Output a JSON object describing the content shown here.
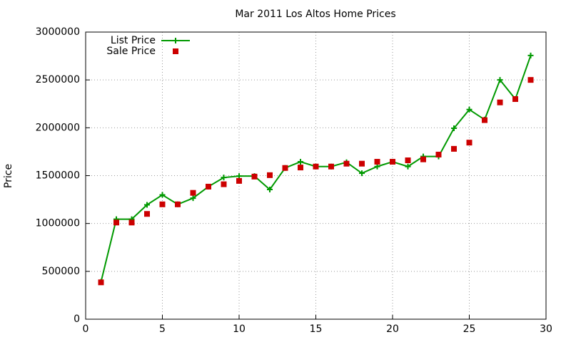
{
  "chart_data": {
    "type": "line",
    "title": "Mar 2011 Los Altos Home Prices",
    "y_label": "Price",
    "x": [
      1,
      2,
      3,
      4,
      5,
      6,
      7,
      8,
      9,
      10,
      11,
      12,
      13,
      14,
      15,
      16,
      17,
      18,
      19,
      20,
      21,
      22,
      23,
      24,
      25,
      26,
      27,
      28,
      29
    ],
    "series": [
      {
        "name": "List Price",
        "color": "#009900",
        "line": true,
        "marker": "plus",
        "values": [
          390000,
          1045000,
          1045000,
          1195000,
          1299000,
          1200000,
          1265000,
          1385000,
          1480000,
          1495000,
          1495000,
          1355000,
          1580000,
          1645000,
          1595000,
          1595000,
          1640000,
          1525000,
          1595000,
          1645000,
          1595000,
          1700000,
          1700000,
          1995000,
          2190000,
          2085000,
          2500000,
          2300000,
          2755000
        ]
      },
      {
        "name": "Sale Price",
        "color": "#cc0000",
        "line": false,
        "marker": "square",
        "values": [
          385000,
          1010000,
          1010000,
          1100000,
          1200000,
          1200000,
          1320000,
          1385000,
          1410000,
          1445000,
          1490000,
          1505000,
          1580000,
          1585000,
          1595000,
          1595000,
          1625000,
          1625000,
          1645000,
          1645000,
          1660000,
          1670000,
          1720000,
          1780000,
          1845000,
          2080000,
          2265000,
          2300000,
          2500000
        ]
      }
    ],
    "xlim": [
      0,
      30
    ],
    "xticks": [
      0,
      5,
      10,
      15,
      20,
      25,
      30
    ],
    "ylim": [
      0,
      3000000
    ],
    "yticks": [
      0,
      500000,
      1000000,
      1500000,
      2000000,
      2500000,
      3000000
    ],
    "grid": true,
    "legend": "top-left"
  }
}
